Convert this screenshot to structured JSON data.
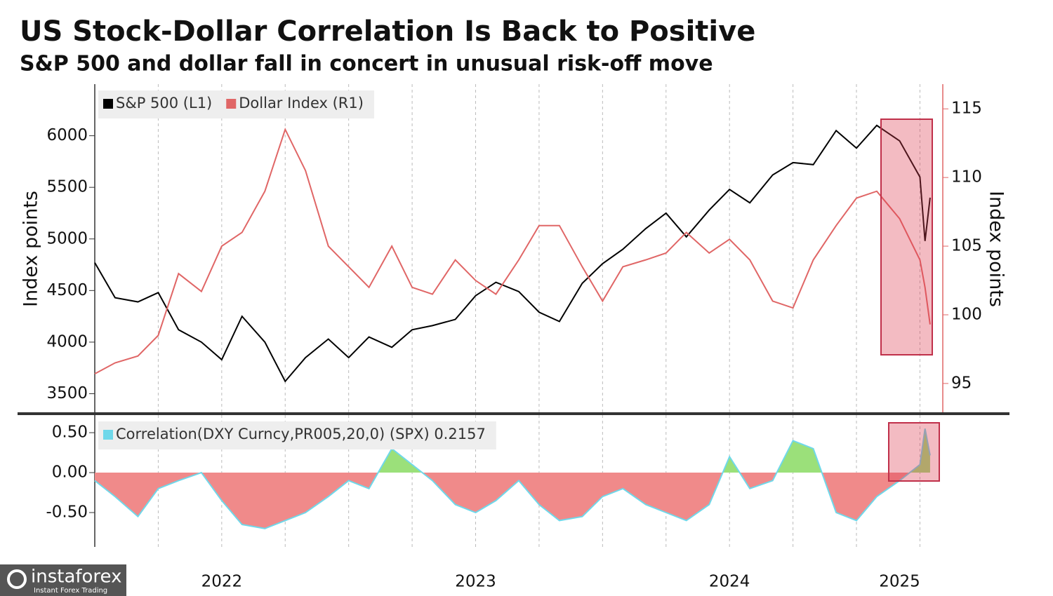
{
  "chart_data": [
    {
      "type": "line",
      "title": "US Stock-Dollar Correlation Is Back to Positive",
      "subtitle": "S&P 500 and dollar fall in concert in unusual risk-off move",
      "x": [
        2022,
        2022.08,
        2022.17,
        2022.25,
        2022.33,
        2022.42,
        2022.5,
        2022.58,
        2022.67,
        2022.75,
        2022.83,
        2022.92,
        2023,
        2023.08,
        2023.17,
        2023.25,
        2023.33,
        2023.42,
        2023.5,
        2023.58,
        2023.67,
        2023.75,
        2023.83,
        2023.92,
        2024,
        2024.08,
        2024.17,
        2024.25,
        2024.33,
        2024.42,
        2024.5,
        2024.58,
        2024.67,
        2024.75,
        2024.83,
        2024.92,
        2025,
        2025.08,
        2025.17,
        2025.25,
        2025.27,
        2025.29
      ],
      "series": [
        {
          "name": "S&P 500 (L1)",
          "color": "#000000",
          "values": [
            4770,
            4430,
            4390,
            4480,
            4120,
            4000,
            3830,
            4250,
            4000,
            3620,
            3850,
            4030,
            3850,
            4050,
            3950,
            4120,
            4160,
            4220,
            4450,
            4580,
            4490,
            4290,
            4200,
            4570,
            4760,
            4900,
            5100,
            5250,
            5020,
            5280,
            5480,
            5350,
            5620,
            5740,
            5720,
            6050,
            5880,
            6100,
            5950,
            5600,
            4980,
            5400
          ]
        },
        {
          "name": "Dollar Index  (R1)",
          "color": "#e06666",
          "axis": "y2",
          "values": [
            95.7,
            96.5,
            97,
            98.5,
            103,
            101.7,
            105,
            106,
            109,
            113.5,
            110.5,
            105,
            103.5,
            102,
            105,
            102,
            101.5,
            104,
            102.5,
            101.5,
            104,
            106.5,
            106.5,
            103.5,
            101,
            103.5,
            104,
            104.5,
            106,
            104.5,
            105.5,
            104,
            101,
            100.5,
            104,
            106.5,
            108.5,
            109,
            107,
            104,
            102,
            99.3
          ]
        }
      ],
      "xlim": [
        2022,
        2025.34
      ],
      "xgrid": [
        2022.25,
        2022.5,
        2022.75,
        2023,
        2023.25,
        2023.5,
        2023.75,
        2024,
        2024.25,
        2024.5,
        2024.75,
        2025,
        2025.25
      ],
      "ylim": [
        3320,
        6500
      ],
      "yticks": [
        3500,
        4000,
        4500,
        5000,
        5500,
        6000
      ],
      "y2lim": [
        92.9,
        116.8
      ],
      "y2ticks": [
        95,
        100,
        105,
        110,
        115
      ],
      "ylabel": "Index points",
      "y2label": "Index points",
      "grid": true,
      "legend": "upper left"
    },
    {
      "type": "area",
      "x": [
        2022,
        2022.08,
        2022.17,
        2022.25,
        2022.33,
        2022.42,
        2022.5,
        2022.58,
        2022.67,
        2022.75,
        2022.83,
        2022.92,
        2023,
        2023.08,
        2023.17,
        2023.25,
        2023.33,
        2023.42,
        2023.5,
        2023.58,
        2023.67,
        2023.75,
        2023.83,
        2023.92,
        2024,
        2024.08,
        2024.17,
        2024.25,
        2024.33,
        2024.42,
        2024.5,
        2024.58,
        2024.67,
        2024.75,
        2024.83,
        2024.92,
        2025,
        2025.08,
        2025.17,
        2025.25,
        2025.27,
        2025.29
      ],
      "series": [
        {
          "name": "Correlation(DXY Curncy,PR005,20,0) (SPX) 0.2157",
          "color": "#6fd8ea",
          "positive_color": "#9be07a",
          "negative_color": "#f08a8a",
          "values": [
            -0.1,
            -0.3,
            -0.55,
            -0.2,
            -0.1,
            0,
            -0.35,
            -0.65,
            -0.7,
            -0.6,
            -0.5,
            -0.3,
            -0.1,
            -0.2,
            0.3,
            0.1,
            -0.1,
            -0.4,
            -0.5,
            -0.35,
            -0.1,
            -0.4,
            -0.6,
            -0.55,
            -0.3,
            -0.2,
            -0.4,
            -0.5,
            -0.6,
            -0.4,
            0.2,
            -0.2,
            -0.1,
            0.4,
            0.3,
            -0.5,
            -0.6,
            -0.3,
            -0.1,
            0.1,
            0.55,
            0.2157
          ]
        }
      ],
      "xlim": [
        2022,
        2025.34
      ],
      "xticks": [
        2022,
        2023,
        2024,
        2025
      ],
      "xgrid": [
        2022.25,
        2022.5,
        2022.75,
        2023,
        2023.25,
        2023.5,
        2023.75,
        2024,
        2024.25,
        2024.5,
        2024.75,
        2025,
        2025.25
      ],
      "ylim": [
        -0.93,
        0.72
      ],
      "yticks": [
        {
          "value": 0.5,
          "label": "0.50"
        },
        {
          "value": 0,
          "label": "0.00"
        },
        {
          "value": -0.5,
          "label": "-0.50"
        }
      ],
      "grid": true,
      "legend": "upper left"
    }
  ],
  "watermark": {
    "name": "instaforex",
    "tagline": "Instant Forex Trading"
  }
}
